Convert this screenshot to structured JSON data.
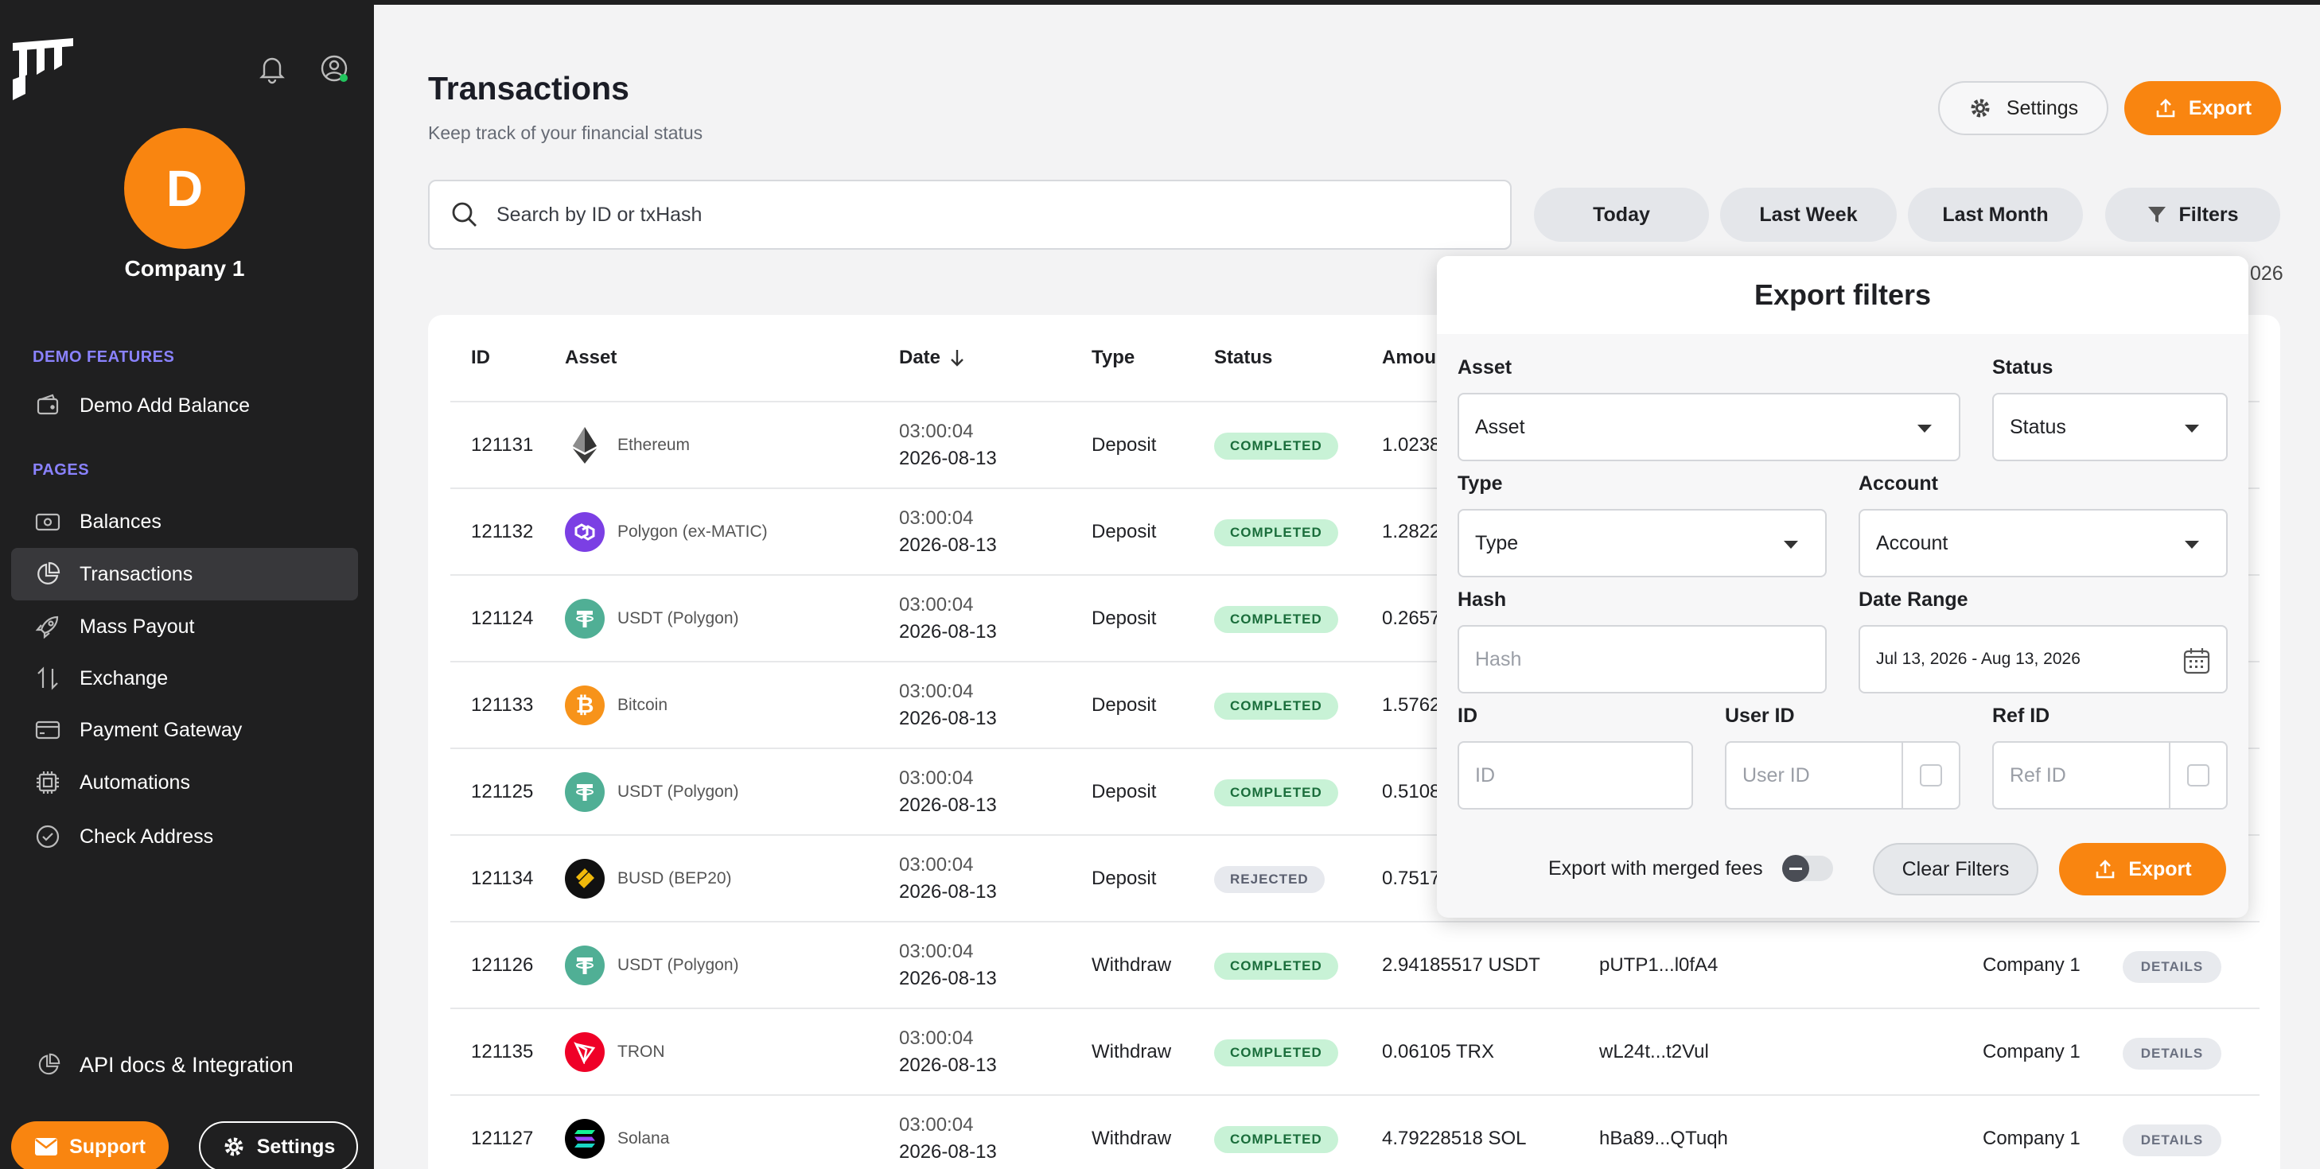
{
  "sidebar": {
    "company_initial": "D",
    "company_name": "Company 1",
    "section_demo": "DEMO FEATURES",
    "demo_item": "Demo Add Balance",
    "section_pages": "PAGES",
    "items": [
      {
        "label": "Balances",
        "icon": "wallet-icon"
      },
      {
        "label": "Transactions",
        "icon": "pie-chart-icon",
        "active": true
      },
      {
        "label": "Mass Payout",
        "icon": "rocket-icon"
      },
      {
        "label": "Exchange",
        "icon": "swap-arrows-icon"
      },
      {
        "label": "Payment Gateway",
        "icon": "credit-card-icon"
      },
      {
        "label": "Automations",
        "icon": "chip-icon"
      },
      {
        "label": "Check Address",
        "icon": "check-circle-icon"
      }
    ],
    "api_docs": "API docs & Integration",
    "support": "Support",
    "settings": "Settings"
  },
  "header": {
    "title": "Transactions",
    "subtitle": "Keep track of your financial status",
    "settings_btn": "Settings",
    "export_btn": "Export"
  },
  "search": {
    "placeholder": "Search by ID or txHash"
  },
  "quick_filters": {
    "today": "Today",
    "last_week": "Last Week",
    "last_month": "Last Month",
    "filters": "Filters"
  },
  "range_year_fragment": "026",
  "table": {
    "headers": {
      "id": "ID",
      "asset": "Asset",
      "date": "Date",
      "type": "Type",
      "status": "Status",
      "amount": "Amou"
    },
    "details_label": "DETAILS",
    "rows": [
      {
        "id": "121131",
        "asset": "Ethereum",
        "coin": "eth",
        "time": "03:00:04",
        "date": "2026-08-13",
        "type": "Deposit",
        "status": "COMPLETED",
        "amount": "1.0238",
        "hash": "",
        "account": ""
      },
      {
        "id": "121132",
        "asset": "Polygon (ex-MATIC)",
        "coin": "matic",
        "time": "03:00:04",
        "date": "2026-08-13",
        "type": "Deposit",
        "status": "COMPLETED",
        "amount": "1.2822",
        "hash": "",
        "account": ""
      },
      {
        "id": "121124",
        "asset": "USDT (Polygon)",
        "coin": "usdt",
        "time": "03:00:04",
        "date": "2026-08-13",
        "type": "Deposit",
        "status": "COMPLETED",
        "amount": "0.2657",
        "hash": "",
        "account": ""
      },
      {
        "id": "121133",
        "asset": "Bitcoin",
        "coin": "btc",
        "time": "03:00:04",
        "date": "2026-08-13",
        "type": "Deposit",
        "status": "COMPLETED",
        "amount": "1.5762",
        "hash": "",
        "account": ""
      },
      {
        "id": "121125",
        "asset": "USDT (Polygon)",
        "coin": "usdt",
        "time": "03:00:04",
        "date": "2026-08-13",
        "type": "Deposit",
        "status": "COMPLETED",
        "amount": "0.5108",
        "hash": "",
        "account": ""
      },
      {
        "id": "121134",
        "asset": "BUSD (BEP20)",
        "coin": "busd",
        "time": "03:00:04",
        "date": "2026-08-13",
        "type": "Deposit",
        "status": "REJECTED",
        "amount": "0.7517",
        "hash": "",
        "account": ""
      },
      {
        "id": "121126",
        "asset": "USDT (Polygon)",
        "coin": "usdt",
        "time": "03:00:04",
        "date": "2026-08-13",
        "type": "Withdraw",
        "status": "COMPLETED",
        "amount": "2.94185517 USDT",
        "hash": "pUTP1...l0fA4",
        "account": "Company 1"
      },
      {
        "id": "121135",
        "asset": "TRON",
        "coin": "trx",
        "time": "03:00:04",
        "date": "2026-08-13",
        "type": "Withdraw",
        "status": "COMPLETED",
        "amount": "0.06105 TRX",
        "hash": "wL24t...t2Vul",
        "account": "Company 1"
      },
      {
        "id": "121127",
        "asset": "Solana",
        "coin": "sol",
        "time": "03:00:04",
        "date": "2026-08-13",
        "type": "Withdraw",
        "status": "COMPLETED",
        "amount": "4.79228518 SOL",
        "hash": "hBa89...QTuqh",
        "account": "Company 1"
      }
    ]
  },
  "filters_panel": {
    "title": "Export filters",
    "asset_label": "Asset",
    "asset_value": "Asset",
    "status_label": "Status",
    "status_value": "Status",
    "type_label": "Type",
    "type_value": "Type",
    "account_label": "Account",
    "account_value": "Account",
    "hash_label": "Hash",
    "hash_placeholder": "Hash",
    "date_range_label": "Date Range",
    "date_range_value": "Jul 13, 2026 - Aug 13, 2026",
    "id_label": "ID",
    "id_placeholder": "ID",
    "user_id_label": "User ID",
    "user_id_placeholder": "User ID",
    "ref_id_label": "Ref ID",
    "ref_id_placeholder": "Ref ID",
    "merged_fees_label": "Export with merged fees",
    "clear_btn": "Clear Filters",
    "export_btn": "Export"
  },
  "colors": {
    "accent": "#f98510",
    "sidebar_bg": "#1f1f20",
    "section_label": "#8a82ff",
    "completed_bg": "#c8f2d6"
  }
}
